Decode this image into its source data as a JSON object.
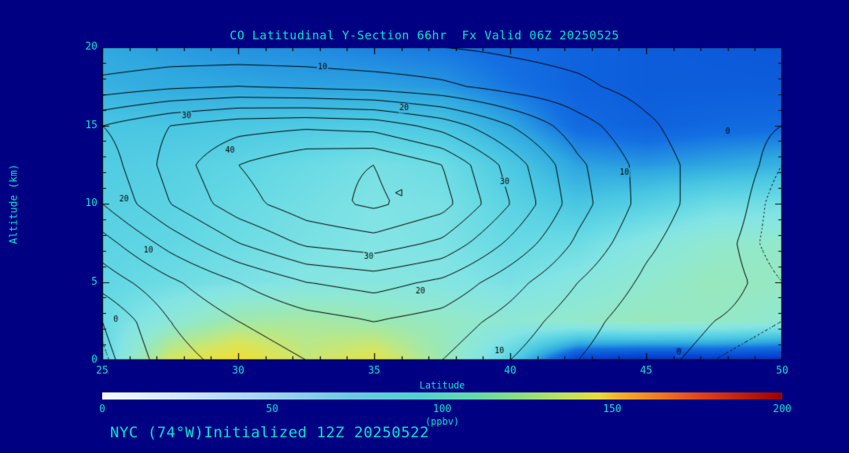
{
  "colors": {
    "background": "#000083",
    "text": "#06e3cf",
    "contour_line": "#000000"
  },
  "footer_text": "NYC (74°W)Initialized 12Z 20250522",
  "chart_data": {
    "type": "heatmap",
    "title": "CO Latitudinal Y-Section 66hr  Fx Valid 06Z 20250525",
    "xlabel": "Latitude",
    "ylabel": "Altitude (km)",
    "x_range": [
      25,
      50
    ],
    "y_range": [
      0,
      20
    ],
    "x_ticks": [
      25,
      30,
      35,
      40,
      45,
      50
    ],
    "y_ticks": [
      0,
      5,
      10,
      15,
      20
    ],
    "grid_on": false,
    "grid_lats": [
      25,
      27.5,
      30,
      32.5,
      35,
      37.5,
      40,
      42.5,
      45,
      47.5,
      50
    ],
    "grid_alts": [
      0,
      2.5,
      5,
      7.5,
      10,
      12.5,
      15,
      17.5,
      20
    ],
    "fill_values_ppbv": [
      [
        62,
        118,
        135,
        112,
        125,
        95,
        60,
        15,
        10,
        12,
        10
      ],
      [
        66,
        82,
        98,
        100,
        95,
        90,
        84,
        88,
        92,
        90,
        85
      ],
      [
        64,
        68,
        72,
        76,
        78,
        76,
        72,
        78,
        86,
        92,
        90
      ],
      [
        62,
        64,
        68,
        72,
        75,
        73,
        66,
        68,
        78,
        86,
        88
      ],
      [
        60,
        62,
        66,
        70,
        74,
        72,
        62,
        55,
        60,
        68,
        70
      ],
      [
        58,
        60,
        63,
        67,
        71,
        68,
        56,
        44,
        42,
        45,
        48
      ],
      [
        55,
        55,
        56,
        57,
        58,
        55,
        45,
        33,
        30,
        32,
        33
      ],
      [
        48,
        46,
        45,
        44,
        44,
        42,
        36,
        30,
        28,
        28,
        28
      ],
      [
        45,
        43,
        41,
        40,
        38,
        36,
        33,
        30,
        28,
        27,
        26
      ]
    ],
    "contour_values": [
      [
        -2,
        8,
        12,
        15,
        18,
        15,
        10,
        5,
        1,
        -1,
        -2
      ],
      [
        0,
        10,
        15,
        18,
        20,
        18,
        13,
        7,
        2,
        0,
        -1
      ],
      [
        7,
        14,
        20,
        25,
        27,
        24,
        17,
        10,
        4,
        1,
        -1
      ],
      [
        13,
        22,
        30,
        36,
        38,
        34,
        24,
        14,
        6,
        1,
        -2
      ],
      [
        20,
        30,
        38,
        43,
        46,
        42,
        30,
        17,
        8,
        2,
        -2
      ],
      [
        22,
        32,
        40,
        44,
        45,
        40,
        28,
        16,
        8,
        2,
        -1
      ],
      [
        25,
        30,
        33,
        34,
        33,
        28,
        20,
        12,
        6,
        1,
        0
      ],
      [
        12,
        14,
        15,
        14,
        13,
        11,
        8,
        6,
        3,
        2,
        1
      ],
      [
        5,
        6,
        6,
        6,
        5,
        5,
        4,
        3,
        2,
        1,
        0
      ]
    ],
    "contour_levels": [
      0,
      5,
      10,
      15,
      20,
      25,
      30,
      35,
      40,
      45
    ],
    "contour_levels_dotted": [
      -1
    ],
    "contour_labels": [
      {
        "text": "10",
        "lat": 33.1,
        "alt": 18.7
      },
      {
        "text": "20",
        "lat": 36.1,
        "alt": 16.1
      },
      {
        "text": "30",
        "lat": 28.1,
        "alt": 15.6
      },
      {
        "text": "40",
        "lat": 29.7,
        "alt": 13.4
      },
      {
        "text": "20",
        "lat": 25.8,
        "alt": 10.3
      },
      {
        "text": "10",
        "lat": 26.7,
        "alt": 7.0
      },
      {
        "text": "0",
        "lat": 25.5,
        "alt": 2.6
      },
      {
        "text": "30",
        "lat": 39.8,
        "alt": 11.4
      },
      {
        "text": "10",
        "lat": 44.2,
        "alt": 12.0
      },
      {
        "text": "0",
        "lat": 48.0,
        "alt": 14.6
      },
      {
        "text": "30",
        "lat": 34.8,
        "alt": 6.6
      },
      {
        "text": "20",
        "lat": 36.7,
        "alt": 4.4
      },
      {
        "text": "10",
        "lat": 39.6,
        "alt": 0.6
      },
      {
        "text": "0",
        "lat": 46.2,
        "alt": 0.5
      }
    ],
    "marker": {
      "shape": "triangle-left",
      "lat": 35.9,
      "alt": 10.7
    },
    "colormap_stops": [
      [
        0,
        "#000d8a"
      ],
      [
        12,
        "#0033c0"
      ],
      [
        25,
        "#0a55d8"
      ],
      [
        35,
        "#1470e2"
      ],
      [
        45,
        "#2fa8e0"
      ],
      [
        55,
        "#49c6e2"
      ],
      [
        65,
        "#63d8e4"
      ],
      [
        75,
        "#83e4e4"
      ],
      [
        85,
        "#8fe8d2"
      ],
      [
        95,
        "#9ce8b4"
      ],
      [
        105,
        "#b4e890"
      ],
      [
        118,
        "#d8e55e"
      ],
      [
        135,
        "#f2df2e"
      ],
      [
        150,
        "#f59b1e"
      ],
      [
        170,
        "#e2471a"
      ],
      [
        200,
        "#8f0000"
      ]
    ],
    "colorbar": {
      "ticks": [
        0,
        50,
        100,
        150,
        200
      ],
      "max": 200,
      "unit_label": "(ppbv)",
      "gradient_stops": [
        [
          0,
          "#f6faff"
        ],
        [
          0.12,
          "#cfe6f7"
        ],
        [
          0.25,
          "#9fd2ef"
        ],
        [
          0.37,
          "#6cc8e2"
        ],
        [
          0.47,
          "#55cfcf"
        ],
        [
          0.55,
          "#66d9a8"
        ],
        [
          0.62,
          "#8fdf7a"
        ],
        [
          0.68,
          "#bfe35a"
        ],
        [
          0.73,
          "#e8da3a"
        ],
        [
          0.76,
          "#f2b22a"
        ],
        [
          0.82,
          "#ee7a1e"
        ],
        [
          0.88,
          "#e0431a"
        ],
        [
          1,
          "#9a0000"
        ]
      ]
    }
  }
}
